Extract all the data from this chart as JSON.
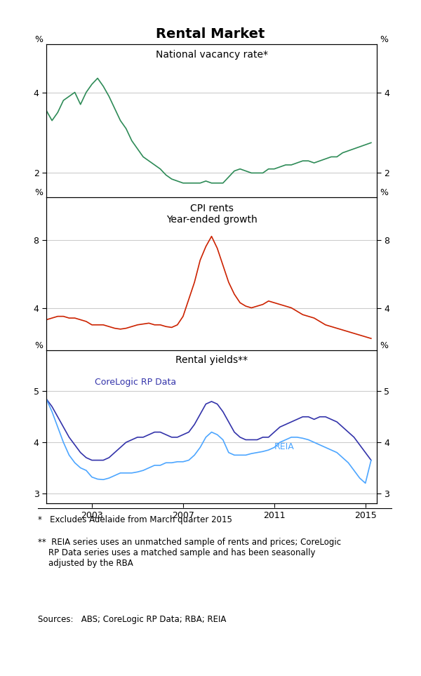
{
  "title": "Rental Market",
  "panel1_title": "National vacancy rate*",
  "panel2_title": "CPI rents\nYear-ended growth",
  "panel3_title": "Rental yields**",
  "panel1_ylim": [
    1.4,
    5.2
  ],
  "panel1_yticks": [
    2,
    4
  ],
  "panel2_ylim": [
    1.5,
    10.5
  ],
  "panel2_yticks": [
    4,
    8
  ],
  "panel3_ylim": [
    2.8,
    5.8
  ],
  "panel3_yticks": [
    3,
    4,
    5
  ],
  "xlim_start": 2001.0,
  "xlim_end": 2015.5,
  "xticks": [
    2003,
    2007,
    2011,
    2015
  ],
  "panel1_color": "#2e8b57",
  "panel2_color": "#cc2200",
  "panel3_corelogic_color": "#3333aa",
  "panel3_reia_color": "#4da6ff",
  "footnote1": "*   Excludes Adelaide from March quarter 2015",
  "footnote2": "**  REIA series uses an unmatched sample of rents and prices; CoreLogic\n    RP Data series uses a matched sample and has been seasonally\n    adjusted by the RBA",
  "sources": "Sources:   ABS; CoreLogic RP Data; RBA; REIA",
  "vacancy_x": [
    2001.0,
    2001.25,
    2001.5,
    2001.75,
    2002.0,
    2002.25,
    2002.5,
    2002.75,
    2003.0,
    2003.25,
    2003.5,
    2003.75,
    2004.0,
    2004.25,
    2004.5,
    2004.75,
    2005.0,
    2005.25,
    2005.5,
    2005.75,
    2006.0,
    2006.25,
    2006.5,
    2006.75,
    2007.0,
    2007.25,
    2007.5,
    2007.75,
    2008.0,
    2008.25,
    2008.5,
    2008.75,
    2009.0,
    2009.25,
    2009.5,
    2009.75,
    2010.0,
    2010.25,
    2010.5,
    2010.75,
    2011.0,
    2011.25,
    2011.5,
    2011.75,
    2012.0,
    2012.25,
    2012.5,
    2012.75,
    2013.0,
    2013.25,
    2013.5,
    2013.75,
    2014.0,
    2014.25,
    2014.5,
    2014.75,
    2015.0,
    2015.25
  ],
  "vacancy_y": [
    3.55,
    3.3,
    3.5,
    3.8,
    3.9,
    4.0,
    3.7,
    4.0,
    4.2,
    4.35,
    4.15,
    3.9,
    3.6,
    3.3,
    3.1,
    2.8,
    2.6,
    2.4,
    2.3,
    2.2,
    2.1,
    1.95,
    1.85,
    1.8,
    1.75,
    1.75,
    1.75,
    1.75,
    1.8,
    1.75,
    1.75,
    1.75,
    1.9,
    2.05,
    2.1,
    2.05,
    2.0,
    2.0,
    2.0,
    2.1,
    2.1,
    2.15,
    2.2,
    2.2,
    2.25,
    2.3,
    2.3,
    2.25,
    2.3,
    2.35,
    2.4,
    2.4,
    2.5,
    2.55,
    2.6,
    2.65,
    2.7,
    2.75
  ],
  "cpi_x": [
    2001.0,
    2001.25,
    2001.5,
    2001.75,
    2002.0,
    2002.25,
    2002.5,
    2002.75,
    2003.0,
    2003.25,
    2003.5,
    2003.75,
    2004.0,
    2004.25,
    2004.5,
    2004.75,
    2005.0,
    2005.25,
    2005.5,
    2005.75,
    2006.0,
    2006.25,
    2006.5,
    2006.75,
    2007.0,
    2007.25,
    2007.5,
    2007.75,
    2008.0,
    2008.25,
    2008.5,
    2008.75,
    2009.0,
    2009.25,
    2009.5,
    2009.75,
    2010.0,
    2010.25,
    2010.5,
    2010.75,
    2011.0,
    2011.25,
    2011.5,
    2011.75,
    2012.0,
    2012.25,
    2012.5,
    2012.75,
    2013.0,
    2013.25,
    2013.5,
    2013.75,
    2014.0,
    2014.25,
    2014.5,
    2014.75,
    2015.0,
    2015.25
  ],
  "cpi_y": [
    3.3,
    3.4,
    3.5,
    3.5,
    3.4,
    3.4,
    3.3,
    3.2,
    3.0,
    3.0,
    3.0,
    2.9,
    2.8,
    2.75,
    2.8,
    2.9,
    3.0,
    3.05,
    3.1,
    3.0,
    3.0,
    2.9,
    2.85,
    3.0,
    3.5,
    4.5,
    5.5,
    6.8,
    7.6,
    8.2,
    7.5,
    6.5,
    5.5,
    4.8,
    4.3,
    4.1,
    4.0,
    4.1,
    4.2,
    4.4,
    4.3,
    4.2,
    4.1,
    4.0,
    3.8,
    3.6,
    3.5,
    3.4,
    3.2,
    3.0,
    2.9,
    2.8,
    2.7,
    2.6,
    2.5,
    2.4,
    2.3,
    2.2
  ],
  "corelogic_x": [
    2001.0,
    2001.25,
    2001.5,
    2001.75,
    2002.0,
    2002.25,
    2002.5,
    2002.75,
    2003.0,
    2003.25,
    2003.5,
    2003.75,
    2004.0,
    2004.25,
    2004.5,
    2004.75,
    2005.0,
    2005.25,
    2005.5,
    2005.75,
    2006.0,
    2006.25,
    2006.5,
    2006.75,
    2007.0,
    2007.25,
    2007.5,
    2007.75,
    2008.0,
    2008.25,
    2008.5,
    2008.75,
    2009.0,
    2009.25,
    2009.5,
    2009.75,
    2010.0,
    2010.25,
    2010.5,
    2010.75,
    2011.0,
    2011.25,
    2011.5,
    2011.75,
    2012.0,
    2012.25,
    2012.5,
    2012.75,
    2013.0,
    2013.25,
    2013.5,
    2013.75,
    2014.0,
    2014.25,
    2014.5,
    2014.75,
    2015.0,
    2015.25
  ],
  "corelogic_y": [
    4.85,
    4.7,
    4.5,
    4.3,
    4.1,
    3.95,
    3.8,
    3.7,
    3.65,
    3.65,
    3.65,
    3.7,
    3.8,
    3.9,
    4.0,
    4.05,
    4.1,
    4.1,
    4.15,
    4.2,
    4.2,
    4.15,
    4.1,
    4.1,
    4.15,
    4.2,
    4.35,
    4.55,
    4.75,
    4.8,
    4.75,
    4.6,
    4.4,
    4.2,
    4.1,
    4.05,
    4.05,
    4.05,
    4.1,
    4.1,
    4.2,
    4.3,
    4.35,
    4.4,
    4.45,
    4.5,
    4.5,
    4.45,
    4.5,
    4.5,
    4.45,
    4.4,
    4.3,
    4.2,
    4.1,
    3.95,
    3.8,
    3.65
  ],
  "reia_x": [
    2001.0,
    2001.25,
    2001.5,
    2001.75,
    2002.0,
    2002.25,
    2002.5,
    2002.75,
    2003.0,
    2003.25,
    2003.5,
    2003.75,
    2004.0,
    2004.25,
    2004.5,
    2004.75,
    2005.0,
    2005.25,
    2005.5,
    2005.75,
    2006.0,
    2006.25,
    2006.5,
    2006.75,
    2007.0,
    2007.25,
    2007.5,
    2007.75,
    2008.0,
    2008.25,
    2008.5,
    2008.75,
    2009.0,
    2009.25,
    2009.5,
    2009.75,
    2010.0,
    2010.25,
    2010.5,
    2010.75,
    2011.0,
    2011.25,
    2011.5,
    2011.75,
    2012.0,
    2012.25,
    2012.5,
    2012.75,
    2013.0,
    2013.25,
    2013.5,
    2013.75,
    2014.0,
    2014.25,
    2014.5,
    2014.75,
    2015.0,
    2015.25
  ],
  "reia_y": [
    4.85,
    4.6,
    4.3,
    4.0,
    3.75,
    3.6,
    3.5,
    3.45,
    3.32,
    3.28,
    3.27,
    3.3,
    3.35,
    3.4,
    3.4,
    3.4,
    3.42,
    3.45,
    3.5,
    3.55,
    3.55,
    3.6,
    3.6,
    3.62,
    3.62,
    3.65,
    3.75,
    3.9,
    4.1,
    4.2,
    4.15,
    4.05,
    3.8,
    3.75,
    3.75,
    3.75,
    3.78,
    3.8,
    3.82,
    3.85,
    3.9,
    4.0,
    4.05,
    4.1,
    4.1,
    4.08,
    4.05,
    4.0,
    3.95,
    3.9,
    3.85,
    3.8,
    3.7,
    3.6,
    3.45,
    3.3,
    3.2,
    3.65
  ]
}
